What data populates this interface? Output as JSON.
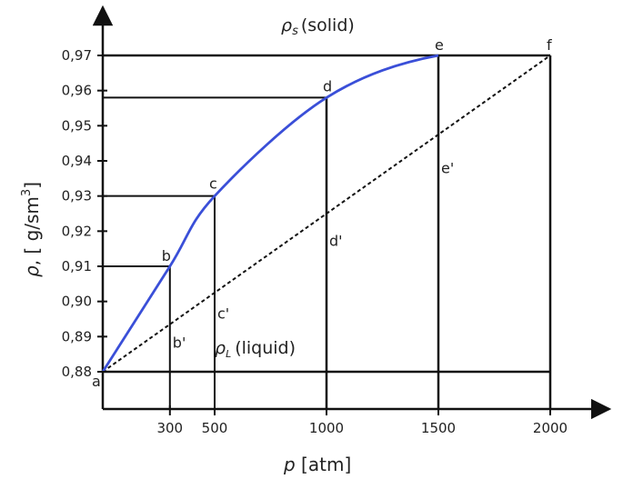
{
  "chart_data": {
    "type": "line",
    "xlabel": "p [atm]",
    "ylabel": "ρ, [ g/sm³]",
    "ylabel_parts": {
      "rho": "ρ",
      "rest": ", [ g/sm",
      "sup": "3",
      "close": "]"
    },
    "xlabel_parts": {
      "p": "p",
      "rest": " [atm]"
    },
    "xlim": [
      0,
      2000
    ],
    "ylim": [
      0.88,
      0.97
    ],
    "x_ticks": [
      {
        "value": 300,
        "label": "300"
      },
      {
        "value": 500,
        "label": "500"
      },
      {
        "value": 1000,
        "label": "1000"
      },
      {
        "value": 1500,
        "label": "1500"
      },
      {
        "value": 2000,
        "label": "2000"
      }
    ],
    "y_ticks": [
      {
        "value": 0.88,
        "label": "0,88"
      },
      {
        "value": 0.89,
        "label": "0,89"
      },
      {
        "value": 0.9,
        "label": "0,90"
      },
      {
        "value": 0.91,
        "label": "0,91"
      },
      {
        "value": 0.92,
        "label": "0,92"
      },
      {
        "value": 0.93,
        "label": "0,93"
      },
      {
        "value": 0.94,
        "label": "0,94"
      },
      {
        "value": 0.95,
        "label": "0,95"
      },
      {
        "value": 0.96,
        "label": "0,96"
      },
      {
        "value": 0.97,
        "label": "0,97"
      }
    ],
    "curve": {
      "color": "#3a4fd8",
      "points": [
        {
          "x": 0,
          "y": 0.88
        },
        {
          "x": 300,
          "y": 0.91
        },
        {
          "x": 500,
          "y": 0.93
        },
        {
          "x": 1000,
          "y": 0.958
        },
        {
          "x": 1500,
          "y": 0.97
        }
      ]
    },
    "labeled_points": [
      {
        "label": "a",
        "x": 0,
        "y": 0.88
      },
      {
        "label": "b",
        "x": 300,
        "y": 0.91
      },
      {
        "label": "c",
        "x": 500,
        "y": 0.93
      },
      {
        "label": "d",
        "x": 1000,
        "y": 0.958
      },
      {
        "label": "e",
        "x": 1500,
        "y": 0.97
      },
      {
        "label": "f",
        "x": 2000,
        "y": 0.97
      }
    ],
    "chord_points": [
      {
        "label": "b'",
        "x": 300,
        "y": 0.8923
      },
      {
        "label": "c'",
        "x": 500,
        "y": 0.9006
      },
      {
        "label": "d'",
        "x": 1000,
        "y": 0.9213
      },
      {
        "label": "e'",
        "x": 1500,
        "y": 0.9419
      }
    ],
    "regions": {
      "solid": {
        "symbol": "ρ",
        "sub": "s",
        "text": "(solid)"
      },
      "liquid": {
        "symbol": "ρ",
        "sub": "L",
        "text": "(liquid)"
      }
    },
    "grid": false
  }
}
